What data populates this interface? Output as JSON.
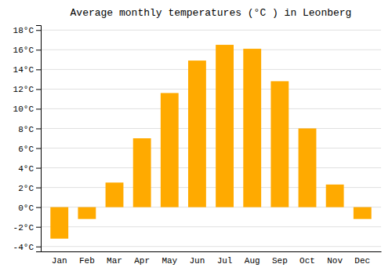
{
  "chart_data": {
    "type": "bar",
    "title": "Average monthly temperatures (°C ) in Leonberg",
    "categories": [
      "Jan",
      "Feb",
      "Mar",
      "Apr",
      "May",
      "Jun",
      "Jul",
      "Aug",
      "Sep",
      "Oct",
      "Nov",
      "Dec"
    ],
    "values": [
      -3.2,
      -1.2,
      2.5,
      7.0,
      11.6,
      14.9,
      16.5,
      16.1,
      12.8,
      8.0,
      2.3,
      -1.2
    ],
    "color": "#FFAA00",
    "ylim": [
      -4.5,
      18.5
    ],
    "yticks": [
      {
        "value": -4,
        "label": "-4°C"
      },
      {
        "value": -2,
        "label": "-2°C"
      },
      {
        "value": 0,
        "label": "0°C"
      },
      {
        "value": 2,
        "label": "2°C"
      },
      {
        "value": 4,
        "label": "4°C"
      },
      {
        "value": 6,
        "label": "6°C"
      },
      {
        "value": 8,
        "label": "8°C"
      },
      {
        "value": 10,
        "label": "10°C"
      },
      {
        "value": 12,
        "label": "12°C"
      },
      {
        "value": 14,
        "label": "14°C"
      },
      {
        "value": 16,
        "label": "16°C"
      },
      {
        "value": 18,
        "label": "18°C"
      }
    ],
    "grid": true
  }
}
